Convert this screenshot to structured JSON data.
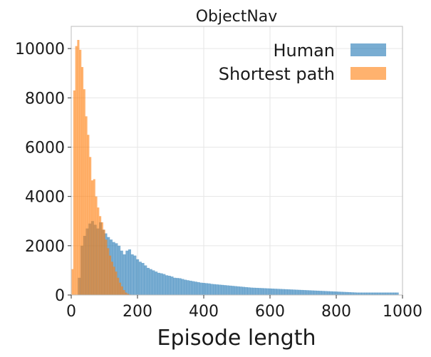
{
  "chart_data": {
    "type": "histogram",
    "title": "ObjectNav",
    "xlabel": "Episode length",
    "ylabel": "",
    "xlim": [
      0,
      1000
    ],
    "ylim": [
      0,
      10900
    ],
    "xticks": [
      0,
      200,
      400,
      600,
      800,
      1000
    ],
    "yticks": [
      0,
      2000,
      4000,
      6000,
      8000,
      10000
    ],
    "grid": true,
    "legend_position": "top-right",
    "series": [
      {
        "name": "Human",
        "color": "#1f77b4",
        "alpha": 0.6,
        "bin_width": 8,
        "x_start": 20,
        "values": [
          700,
          2000,
          2400,
          2700,
          2900,
          3000,
          2850,
          2700,
          2950,
          2650,
          2500,
          2350,
          2250,
          2150,
          2100,
          2000,
          1800,
          1650,
          1800,
          1850,
          1650,
          1600,
          1450,
          1350,
          1300,
          1200,
          1100,
          1050,
          1000,
          950,
          900,
          880,
          850,
          800,
          780,
          750,
          700,
          690,
          680,
          650,
          620,
          600,
          580,
          560,
          540,
          520,
          500,
          490,
          480,
          470,
          450,
          440,
          430,
          420,
          410,
          400,
          390,
          380,
          370,
          360,
          350,
          340,
          330,
          320,
          310,
          300,
          295,
          290,
          285,
          280,
          275,
          270,
          265,
          260,
          255,
          250,
          245,
          240,
          235,
          230,
          225,
          220,
          215,
          210,
          205,
          200,
          195,
          190,
          185,
          180,
          175,
          170,
          165,
          160,
          155,
          150,
          145,
          140,
          135,
          130,
          125,
          120,
          115,
          110,
          105,
          100,
          100,
          100,
          100,
          100,
          100,
          100,
          100,
          100,
          100,
          100,
          100,
          100,
          100,
          100,
          100
        ]
      },
      {
        "name": "Shortest path",
        "color": "#ff7f0e",
        "alpha": 0.6,
        "bin_width": 6,
        "x_start": 0,
        "values": [
          1050,
          8300,
          10100,
          10350,
          9950,
          9250,
          8350,
          7250,
          6500,
          5600,
          4650,
          4700,
          4000,
          3550,
          3200,
          2950,
          2650,
          2250,
          1900,
          1600,
          1350,
          1150,
          950,
          700,
          500,
          350,
          200,
          100,
          50,
          20
        ]
      }
    ]
  }
}
